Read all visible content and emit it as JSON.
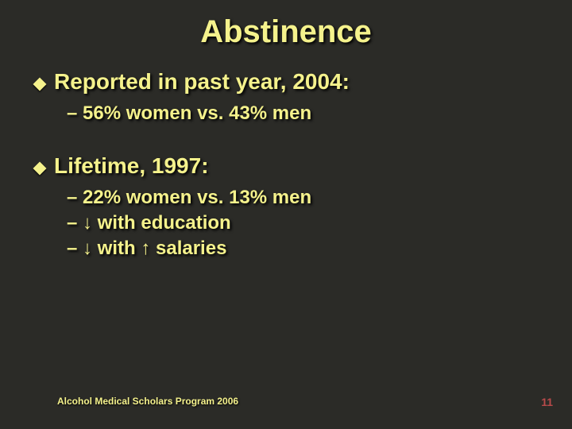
{
  "colors": {
    "background": "#2b2b27",
    "text": "#f5f28c",
    "shadow": "#000000",
    "pagenum": "#b84a4a"
  },
  "typography": {
    "title_fontsize": 40,
    "lvl1_fontsize": 28,
    "lvl2_fontsize": 24,
    "footer_fontsize": 12,
    "font_family": "Verdana"
  },
  "title": "Abstinence",
  "sections": [
    {
      "heading": "Reported in past year, 2004:",
      "subs": [
        "– 56% women vs. 43% men"
      ]
    },
    {
      "heading": "Lifetime, 1997:",
      "subs": [
        "– 22% women vs. 13% men",
        "– ↓ with education",
        "– ↓ with ↑ salaries"
      ]
    }
  ],
  "footer": "Alcohol Medical Scholars Program 2006",
  "page": "11"
}
